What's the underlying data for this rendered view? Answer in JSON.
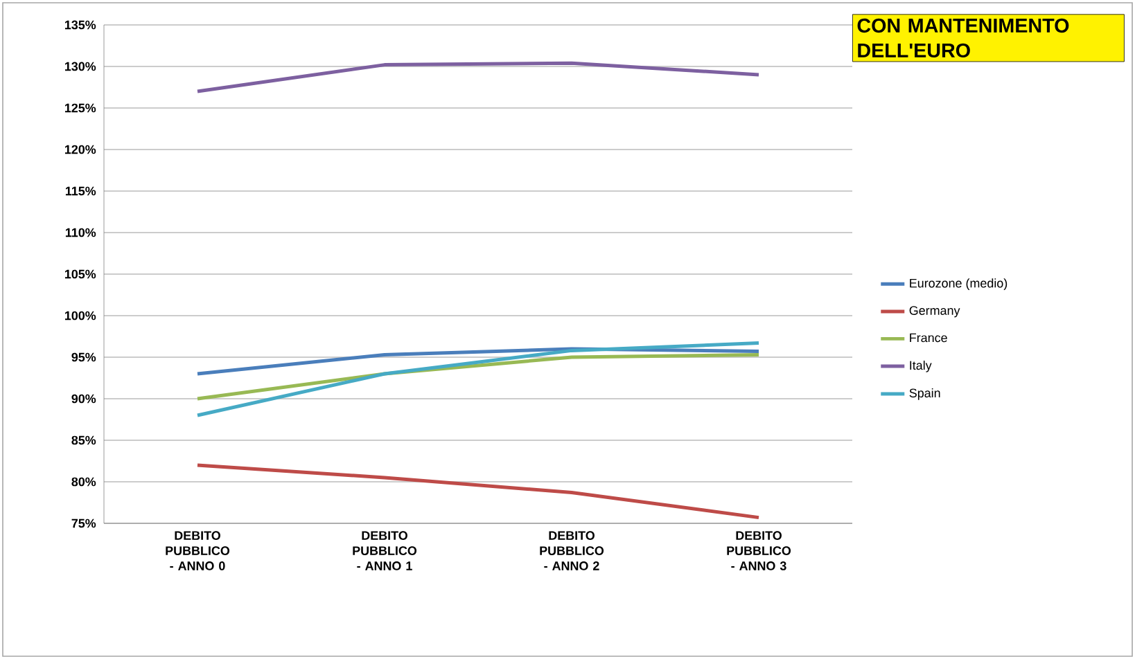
{
  "chart_data": {
    "type": "line",
    "title": "CON MANTENIMENTO DELL'EURO",
    "categories": [
      "DEBITO PUBBLICO - ANNO 0",
      "DEBITO PUBBLICO - ANNO 1",
      "DEBITO PUBBLICO - ANNO 2",
      "DEBITO PUBBLICO - ANNO 3"
    ],
    "series": [
      {
        "name": "Eurozone (medio)",
        "color": "#4a7ebb",
        "values": [
          93,
          95.3,
          96,
          95.7
        ]
      },
      {
        "name": "Germany",
        "color": "#be4b48",
        "values": [
          82,
          80.5,
          78.7,
          75.7
        ]
      },
      {
        "name": "France",
        "color": "#98b954",
        "values": [
          90,
          93,
          95,
          95.3
        ]
      },
      {
        "name": "Italy",
        "color": "#7d60a0",
        "values": [
          127,
          130.2,
          130.4,
          129
        ]
      },
      {
        "name": "Spain",
        "color": "#46aac5",
        "values": [
          88,
          93,
          95.8,
          96.7
        ]
      }
    ],
    "ylim": [
      75,
      135
    ],
    "yticks": [
      {
        "value": 75,
        "label": "75%"
      },
      {
        "value": 80,
        "label": "80%"
      },
      {
        "value": 85,
        "label": "85%"
      },
      {
        "value": 90,
        "label": "90%"
      },
      {
        "value": 95,
        "label": "95%"
      },
      {
        "value": 100,
        "label": "100%"
      },
      {
        "value": 105,
        "label": "105%"
      },
      {
        "value": 110,
        "label": "110%"
      },
      {
        "value": 115,
        "label": "115%"
      },
      {
        "value": 120,
        "label": "120%"
      },
      {
        "value": 125,
        "label": "125%"
      },
      {
        "value": 130,
        "label": "130%"
      },
      {
        "value": 135,
        "label": "135%"
      }
    ],
    "grid": "y",
    "legend": "right",
    "marker": "none",
    "line_style": "solid"
  }
}
